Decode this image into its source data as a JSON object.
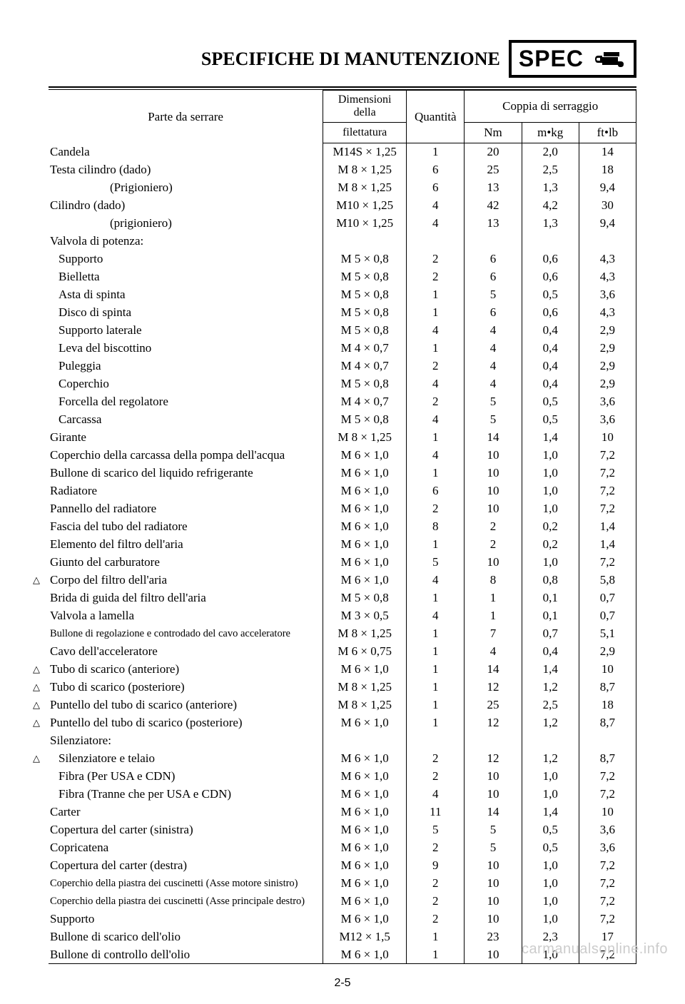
{
  "header": {
    "title": "SPECIFICHE DI MANUTENZIONE",
    "spec_label": "SPEC"
  },
  "table": {
    "headers": {
      "parte": "Parte da serrare",
      "dimensioni_top": "Dimensioni della",
      "dimensioni_bottom": "filettatura",
      "quantita": "Quantità",
      "coppia": "Coppia di serraggio",
      "nm": "Nm",
      "mkg": "m•kg",
      "ftlb": "ft•lb"
    },
    "rows": [
      {
        "parte": "Candela",
        "dim": "M14S × 1,25",
        "qty": "1",
        "nm": "20",
        "mkg": "2,0",
        "ftlb": "14"
      },
      {
        "parte": "Testa cilindro    (dado)",
        "dim": "M  8 × 1,25",
        "qty": "6",
        "nm": "25",
        "mkg": "2,5",
        "ftlb": "18"
      },
      {
        "parte": "(Prigioniero)",
        "indent": 2,
        "dim": "M  8 × 1,25",
        "qty": "6",
        "nm": "13",
        "mkg": "1,3",
        "ftlb": "9,4"
      },
      {
        "parte": "Cilindro     (dado)",
        "dim": "M10 × 1,25",
        "qty": "4",
        "nm": "42",
        "mkg": "4,2",
        "ftlb": "30"
      },
      {
        "parte": "(prigioniero)",
        "indent": 2,
        "dim": "M10 × 1,25",
        "qty": "4",
        "nm": "13",
        "mkg": "1,3",
        "ftlb": "9,4"
      },
      {
        "parte": "Valvola di potenza:",
        "dim": "",
        "qty": "",
        "nm": "",
        "mkg": "",
        "ftlb": ""
      },
      {
        "parte": "Supporto",
        "indent": 1,
        "dim": "M  5 × 0,8",
        "qty": "2",
        "nm": "6",
        "mkg": "0,6",
        "ftlb": "4,3"
      },
      {
        "parte": "Bielletta",
        "indent": 1,
        "dim": "M  5 × 0,8",
        "qty": "2",
        "nm": "6",
        "mkg": "0,6",
        "ftlb": "4,3"
      },
      {
        "parte": "Asta di spinta",
        "indent": 1,
        "dim": "M  5 × 0,8",
        "qty": "1",
        "nm": "5",
        "mkg": "0,5",
        "ftlb": "3,6"
      },
      {
        "parte": "Disco di spinta",
        "indent": 1,
        "dim": "M  5 × 0,8",
        "qty": "1",
        "nm": "6",
        "mkg": "0,6",
        "ftlb": "4,3"
      },
      {
        "parte": "Supporto laterale",
        "indent": 1,
        "dim": "M  5 × 0,8",
        "qty": "4",
        "nm": "4",
        "mkg": "0,4",
        "ftlb": "2,9"
      },
      {
        "parte": "Leva del biscottino",
        "indent": 1,
        "dim": "M  4 × 0,7",
        "qty": "1",
        "nm": "4",
        "mkg": "0,4",
        "ftlb": "2,9"
      },
      {
        "parte": "Puleggia",
        "indent": 1,
        "dim": "M  4 × 0,7",
        "qty": "2",
        "nm": "4",
        "mkg": "0,4",
        "ftlb": "2,9"
      },
      {
        "parte": "Coperchio",
        "indent": 1,
        "dim": "M  5 × 0,8",
        "qty": "4",
        "nm": "4",
        "mkg": "0,4",
        "ftlb": "2,9"
      },
      {
        "parte": "Forcella del regolatore",
        "indent": 1,
        "dim": "M  4 × 0,7",
        "qty": "2",
        "nm": "5",
        "mkg": "0,5",
        "ftlb": "3,6"
      },
      {
        "parte": "Carcassa",
        "indent": 1,
        "dim": "M  5 × 0,8",
        "qty": "4",
        "nm": "5",
        "mkg": "0,5",
        "ftlb": "3,6"
      },
      {
        "parte": "Girante",
        "dim": "M  8 × 1,25",
        "qty": "1",
        "nm": "14",
        "mkg": "1,4",
        "ftlb": "10"
      },
      {
        "parte": "Coperchio della carcassa della pompa dell'acqua",
        "dim": "M  6 × 1,0",
        "qty": "4",
        "nm": "10",
        "mkg": "1,0",
        "ftlb": "7,2"
      },
      {
        "parte": "Bullone di scarico del liquido refrigerante",
        "dim": "M  6 × 1,0",
        "qty": "1",
        "nm": "10",
        "mkg": "1,0",
        "ftlb": "7,2"
      },
      {
        "parte": "Radiatore",
        "dim": "M  6 × 1,0",
        "qty": "6",
        "nm": "10",
        "mkg": "1,0",
        "ftlb": "7,2"
      },
      {
        "parte": "Pannello del radiatore",
        "dim": "M  6 × 1,0",
        "qty": "2",
        "nm": "10",
        "mkg": "1,0",
        "ftlb": "7,2"
      },
      {
        "parte": "Fascia del tubo del radiatore",
        "dim": "M  6 × 1,0",
        "qty": "8",
        "nm": "2",
        "mkg": "0,2",
        "ftlb": "1,4"
      },
      {
        "parte": "Elemento del filtro dell'aria",
        "dim": "M  6 × 1,0",
        "qty": "1",
        "nm": "2",
        "mkg": "0,2",
        "ftlb": "1,4"
      },
      {
        "parte": "Giunto del carburatore",
        "dim": "M  6 × 1,0",
        "qty": "5",
        "nm": "10",
        "mkg": "1,0",
        "ftlb": "7,2"
      },
      {
        "parte": "Corpo del filtro dell'aria",
        "triangle": true,
        "dim": "M  6 × 1,0",
        "qty": "4",
        "nm": "8",
        "mkg": "0,8",
        "ftlb": "5,8"
      },
      {
        "parte": "Brida di guida del filtro dell'aria",
        "dim": "M  5 × 0,8",
        "qty": "1",
        "nm": "1",
        "mkg": "0,1",
        "ftlb": "0,7"
      },
      {
        "parte": "Valvola a lamella",
        "dim": "M  3 × 0,5",
        "qty": "4",
        "nm": "1",
        "mkg": "0,1",
        "ftlb": "0,7"
      },
      {
        "parte": "Bullone di regolazione e controdado del cavo acceleratore",
        "small": true,
        "dim": "M  8 × 1,25",
        "qty": "1",
        "nm": "7",
        "mkg": "0,7",
        "ftlb": "5,1"
      },
      {
        "parte": "Cavo dell'acceleratore",
        "dim": "M  6 × 0,75",
        "qty": "1",
        "nm": "4",
        "mkg": "0,4",
        "ftlb": "2,9"
      },
      {
        "parte": "Tubo di scarico (anteriore)",
        "triangle": true,
        "dim": "M  6 × 1,0",
        "qty": "1",
        "nm": "14",
        "mkg": "1,4",
        "ftlb": "10"
      },
      {
        "parte": "Tubo di scarico (posteriore)",
        "triangle": true,
        "dim": "M  8 × 1,25",
        "qty": "1",
        "nm": "12",
        "mkg": "1,2",
        "ftlb": "8,7"
      },
      {
        "parte": "Puntello del tubo di scarico (anteriore)",
        "triangle": true,
        "dim": "M  8 × 1,25",
        "qty": "1",
        "nm": "25",
        "mkg": "2,5",
        "ftlb": "18"
      },
      {
        "parte": "Puntello del tubo di scarico (posteriore)",
        "triangle": true,
        "dim": "M  6 × 1,0",
        "qty": "1",
        "nm": "12",
        "mkg": "1,2",
        "ftlb": "8,7"
      },
      {
        "parte": "Silenziatore:",
        "dim": "",
        "qty": "",
        "nm": "",
        "mkg": "",
        "ftlb": ""
      },
      {
        "parte": "Silenziatore e telaio",
        "indent": 1,
        "triangle": true,
        "dim": "M  6 × 1,0",
        "qty": "2",
        "nm": "12",
        "mkg": "1,2",
        "ftlb": "8,7"
      },
      {
        "parte": "Fibra (Per USA e CDN)",
        "indent": 1,
        "dim": "M  6 × 1,0",
        "qty": "2",
        "nm": "10",
        "mkg": "1,0",
        "ftlb": "7,2"
      },
      {
        "parte": "Fibra (Tranne che per USA e CDN)",
        "indent": 1,
        "dim": "M  6 × 1,0",
        "qty": "4",
        "nm": "10",
        "mkg": "1,0",
        "ftlb": "7,2"
      },
      {
        "parte": "Carter",
        "dim": "M  6 × 1,0",
        "qty": "11",
        "nm": "14",
        "mkg": "1,4",
        "ftlb": "10"
      },
      {
        "parte": "Copertura del carter (sinistra)",
        "dim": "M  6 × 1,0",
        "qty": "5",
        "nm": "5",
        "mkg": "0,5",
        "ftlb": "3,6"
      },
      {
        "parte": "Copricatena",
        "dim": "M  6 × 1,0",
        "qty": "2",
        "nm": "5",
        "mkg": "0,5",
        "ftlb": "3,6"
      },
      {
        "parte": "Copertura del carter (destra)",
        "dim": "M  6 × 1,0",
        "qty": "9",
        "nm": "10",
        "mkg": "1,0",
        "ftlb": "7,2"
      },
      {
        "parte": "Coperchio della piastra dei cuscinetti (Asse motore sinistro)",
        "small": true,
        "dim": "M  6 × 1,0",
        "qty": "2",
        "nm": "10",
        "mkg": "1,0",
        "ftlb": "7,2"
      },
      {
        "parte": "Coperchio della piastra dei cuscinetti (Asse principale destro)",
        "small": true,
        "dim": "M  6 × 1,0",
        "qty": "2",
        "nm": "10",
        "mkg": "1,0",
        "ftlb": "7,2"
      },
      {
        "parte": "Supporto",
        "dim": "M  6 × 1,0",
        "qty": "2",
        "nm": "10",
        "mkg": "1,0",
        "ftlb": "7,2"
      },
      {
        "parte": "Bullone di scarico dell'olio",
        "dim": "M12 × 1,5",
        "qty": "1",
        "nm": "23",
        "mkg": "2,3",
        "ftlb": "17"
      },
      {
        "parte": "Bullone di controllo dell'olio",
        "dim": "M  6 × 1,0",
        "qty": "1",
        "nm": "10",
        "mkg": "1,0",
        "ftlb": "7,2"
      }
    ]
  },
  "page_number": "2-5",
  "watermark": "carmanualsonline.info"
}
